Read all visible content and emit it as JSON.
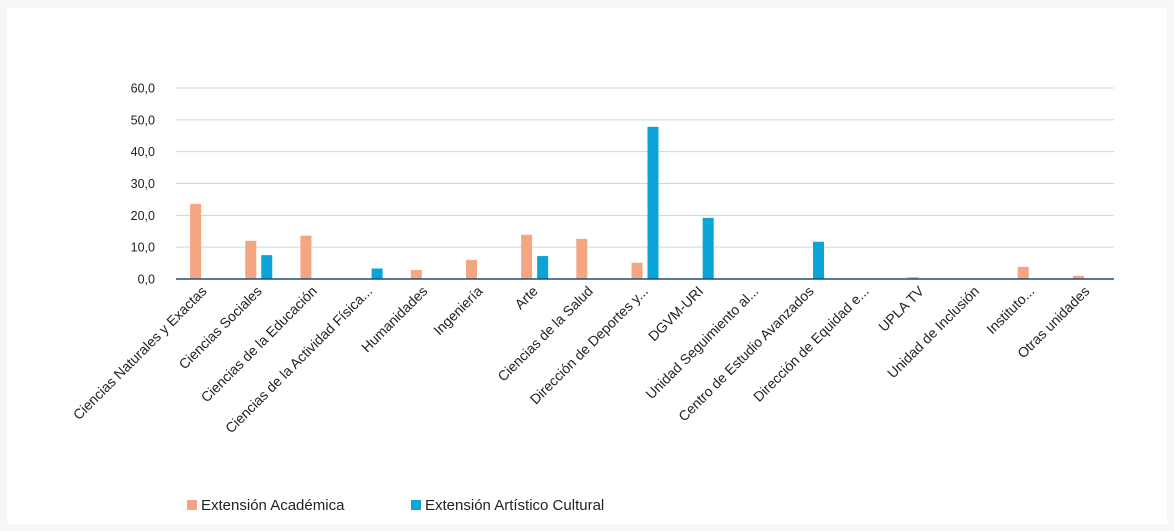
{
  "chart_data": {
    "type": "bar",
    "categories": [
      "Ciencias Naturales y Exactas",
      "Ciencias Sociales",
      "Ciencias de la Educación",
      "Ciencias de la Actividad Física...",
      "Humanidades",
      "Ingeniería",
      "Arte",
      "Ciencias de la Salud",
      "Dirección de Deportes y...",
      "DGVM-URI",
      "Unidad Seguimiento al...",
      "Centro de Estudio Avanzados",
      "Dirección de Equidad e...",
      "UPLA TV",
      "Unidad de Inclusión",
      "Instituto...",
      "Otras unidades"
    ],
    "series": [
      {
        "name": "Extensión Académica",
        "color": "#f4a582",
        "values": [
          23.6,
          12.0,
          13.6,
          0,
          2.8,
          6.0,
          13.9,
          12.6,
          5.1,
          0,
          0,
          0,
          0,
          0.6,
          0,
          3.8,
          1.0
        ]
      },
      {
        "name": "Extensión Artístico Cultural",
        "color": "#0aa4d9",
        "values": [
          0,
          7.5,
          0,
          3.3,
          0,
          0,
          7.2,
          0,
          47.8,
          19.2,
          0,
          11.7,
          0,
          0,
          0,
          0,
          0
        ]
      }
    ],
    "yticks": [
      "0,0",
      "10,0",
      "20,0",
      "30,0",
      "40,0",
      "50,0",
      "60,0"
    ],
    "ylim": [
      0,
      60
    ],
    "grid": true,
    "legend_position": "bottom-left",
    "title": "",
    "xlabel": "",
    "ylabel": ""
  }
}
